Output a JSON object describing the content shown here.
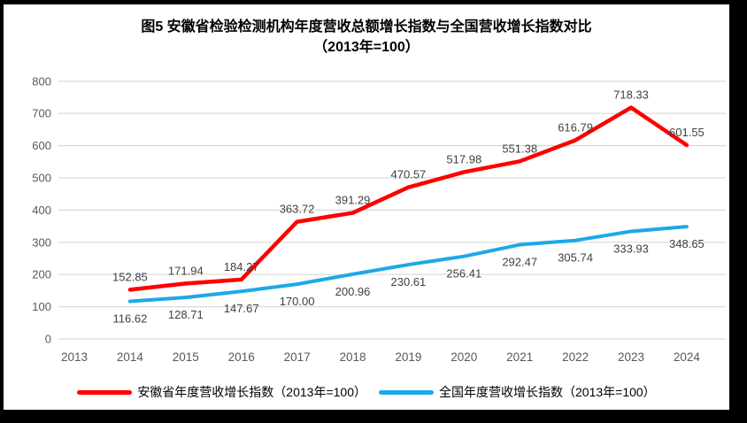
{
  "title": {
    "line1": "图5  安徽省检验检测机构年度营收总额增长指数与全国营收增长指数对比",
    "line2": "（2013年=100）"
  },
  "chart_data": {
    "type": "line",
    "categories": [
      "2013",
      "2014",
      "2015",
      "2016",
      "2017",
      "2018",
      "2019",
      "2020",
      "2021",
      "2022",
      "2023",
      "2024"
    ],
    "series": [
      {
        "name": "安徽省年度营收增长指数（2013年=100）",
        "color": "#FE0000",
        "label_position": "above",
        "values": [
          null,
          152.85,
          171.94,
          184.27,
          363.72,
          391.29,
          470.57,
          517.98,
          551.38,
          616.79,
          718.33,
          601.55
        ]
      },
      {
        "name": "全国年度营收增长指数（2013年=100）",
        "color": "#1BA9E8",
        "label_position": "below",
        "values": [
          null,
          116.62,
          128.71,
          147.67,
          170.0,
          200.96,
          230.61,
          256.41,
          292.47,
          305.74,
          333.93,
          348.65
        ]
      }
    ],
    "ylim": [
      0,
      800
    ],
    "ytick_step": 100,
    "grid": true,
    "legend_position": "bottom",
    "label_decimals": 2,
    "colors": {
      "gridline": "#D9D9D9",
      "axis_text": "#595959",
      "data_label": "#404040",
      "background": "#FFFFFF",
      "border": "#000000"
    }
  }
}
